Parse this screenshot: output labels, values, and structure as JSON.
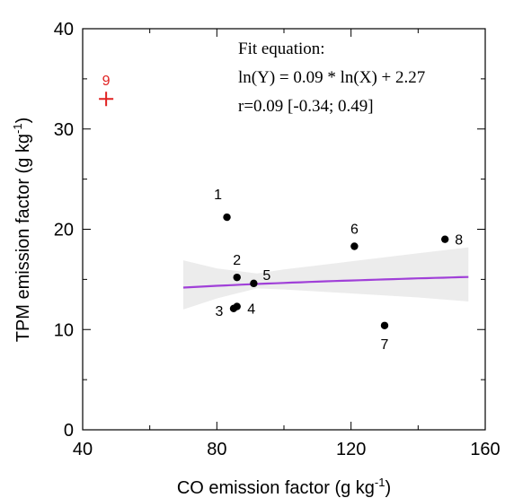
{
  "chart_data": {
    "type": "scatter",
    "xlabel": "CO emission factor (g kg",
    "xlabel_sup": "-1",
    "xlabel_end": ")",
    "ylabel": "TPM emission factor (g kg",
    "ylabel_sup": "-1",
    "ylabel_end": ")",
    "xlim": [
      40,
      160
    ],
    "ylim": [
      0,
      40
    ],
    "x_ticks": [
      40,
      80,
      120,
      160
    ],
    "y_ticks": [
      0,
      10,
      20,
      30,
      40
    ],
    "grid": false,
    "points": [
      {
        "label": "1",
        "x": 83,
        "y": 21.2
      },
      {
        "label": "2",
        "x": 86,
        "y": 15.2
      },
      {
        "label": "3",
        "x": 85,
        "y": 12.1
      },
      {
        "label": "4",
        "x": 86,
        "y": 12.3
      },
      {
        "label": "5",
        "x": 91,
        "y": 14.6
      },
      {
        "label": "6",
        "x": 121,
        "y": 18.3
      },
      {
        "label": "7",
        "x": 130,
        "y": 10.4
      },
      {
        "label": "8",
        "x": 148,
        "y": 19.0
      }
    ],
    "outlier": {
      "label": "9",
      "x": 47,
      "y": 33.0,
      "color": "#e02020"
    },
    "fit": {
      "a": 0.09,
      "b": 2.27,
      "x_range": [
        70,
        155
      ],
      "line_color": "#a040d8",
      "band": [
        {
          "x": 70,
          "lo": 12.0,
          "hi": 16.9
        },
        {
          "x": 80,
          "lo": 13.1,
          "hi": 16.1
        },
        {
          "x": 92,
          "lo": 14.1,
          "hi": 15.6
        },
        {
          "x": 100,
          "lo": 14.0,
          "hi": 16.0
        },
        {
          "x": 120,
          "lo": 13.6,
          "hi": 16.8
        },
        {
          "x": 140,
          "lo": 13.2,
          "hi": 17.6
        },
        {
          "x": 155,
          "lo": 12.8,
          "hi": 18.2
        }
      ]
    },
    "annotations": {
      "line1": "Fit equation:",
      "line2": "ln(Y) = 0.09 * ln(X) + 2.27",
      "line3": "r=0.09 [-0.34; 0.49]"
    }
  }
}
